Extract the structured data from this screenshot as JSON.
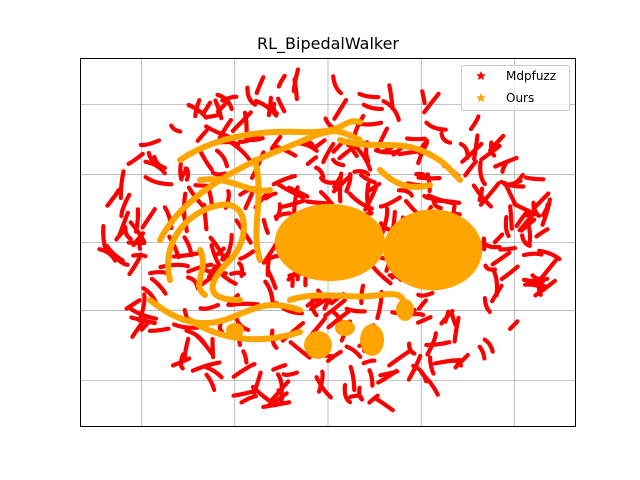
{
  "chart_data": {
    "type": "scatter",
    "title": "RL_BipedalWalker",
    "xlabel": "",
    "ylabel": "",
    "xlim": [
      -1.3,
      1.3
    ],
    "ylim": [
      -1.0,
      1.0
    ],
    "x_gridlines": [
      -0.98,
      -0.49,
      0.0,
      0.49,
      0.98
    ],
    "y_gridlines": [
      -0.75,
      -0.37,
      0.0,
      0.37,
      0.75
    ],
    "grid": true,
    "tick_labels_visible": false,
    "legend_position": "top-right",
    "marker": "star",
    "series": [
      {
        "name": "Mdpfuzz",
        "color": "#ff0000",
        "region": {
          "center": [
            0.0,
            0.0
          ],
          "radius_x": 1.19,
          "radius_y": 0.92
        },
        "pattern": "dense short curved strokes filling an elliptical region"
      },
      {
        "name": "Ours",
        "color": "#ffa500",
        "blobs": [
          {
            "center": [
              0.01,
              0.0
            ],
            "radius_x": 0.29,
            "radius_y": 0.21
          },
          {
            "center": [
              0.55,
              -0.04
            ],
            "radius_x": 0.26,
            "radius_y": 0.22
          }
        ],
        "pattern": "two dense blobs plus winding curves over the left and center"
      }
    ]
  }
}
